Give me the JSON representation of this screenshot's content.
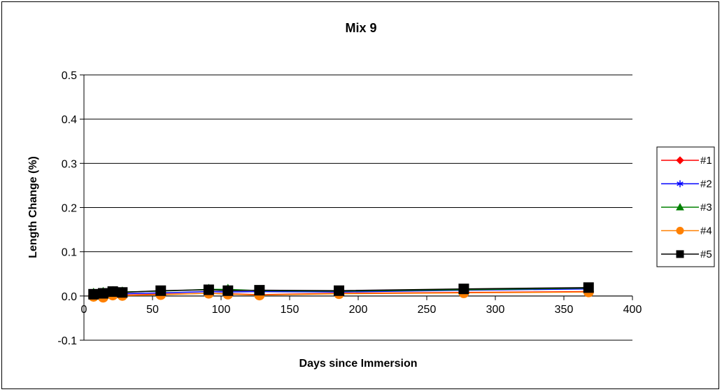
{
  "chart_data": {
    "type": "line",
    "title": "Mix 9",
    "xlabel": "Days since Immersion",
    "ylabel": "Length Change (%)",
    "xlim": [
      0,
      400
    ],
    "ylim": [
      -0.1,
      0.5
    ],
    "x_ticks": [
      "0",
      "50",
      "100",
      "150",
      "200",
      "250",
      "300",
      "350",
      "400"
    ],
    "y_ticks": [
      "-0.1",
      "0.0",
      "0.1",
      "0.2",
      "0.3",
      "0.4",
      "0.5"
    ],
    "grid": "horizontal",
    "legend_position": "right",
    "series": [
      {
        "name": "#1",
        "color": "#ff0000",
        "marker": "diamond",
        "x": [
          7,
          14,
          21,
          28,
          56,
          91,
          105,
          128,
          186,
          277,
          368
        ],
        "y": [
          0.002,
          0.001,
          0.003,
          0.002,
          0.004,
          0.006,
          0.005,
          0.003,
          0.006,
          0.008,
          0.01
        ]
      },
      {
        "name": "#2",
        "color": "#0000ff",
        "marker": "asterisk",
        "x": [
          7,
          14,
          21,
          28,
          56,
          91,
          105,
          128,
          186,
          277,
          368
        ],
        "y": [
          0.003,
          0.004,
          0.006,
          0.005,
          0.007,
          0.01,
          0.009,
          0.01,
          0.009,
          0.013,
          0.016
        ]
      },
      {
        "name": "#3",
        "color": "#008000",
        "marker": "triangle",
        "x": [
          7,
          14,
          21,
          28,
          56,
          91,
          105,
          128,
          186,
          277,
          368
        ],
        "y": [
          0.006,
          0.008,
          0.01,
          0.009,
          0.011,
          0.015,
          0.015,
          0.012,
          0.011,
          0.014,
          0.018
        ]
      },
      {
        "name": "#4",
        "color": "#ff8000",
        "marker": "circle",
        "x": [
          7,
          14,
          21,
          28,
          56,
          91,
          105,
          128,
          186,
          277,
          368
        ],
        "y": [
          -0.001,
          -0.003,
          0.002,
          0.001,
          0.003,
          0.006,
          0.004,
          0.002,
          0.005,
          0.007,
          0.009
        ]
      },
      {
        "name": "#5",
        "color": "#000000",
        "marker": "square",
        "x": [
          7,
          14,
          21,
          28,
          56,
          91,
          105,
          128,
          186,
          277,
          368
        ],
        "y": [
          0.004,
          0.006,
          0.01,
          0.008,
          0.012,
          0.014,
          0.012,
          0.013,
          0.012,
          0.016,
          0.019
        ]
      }
    ]
  }
}
